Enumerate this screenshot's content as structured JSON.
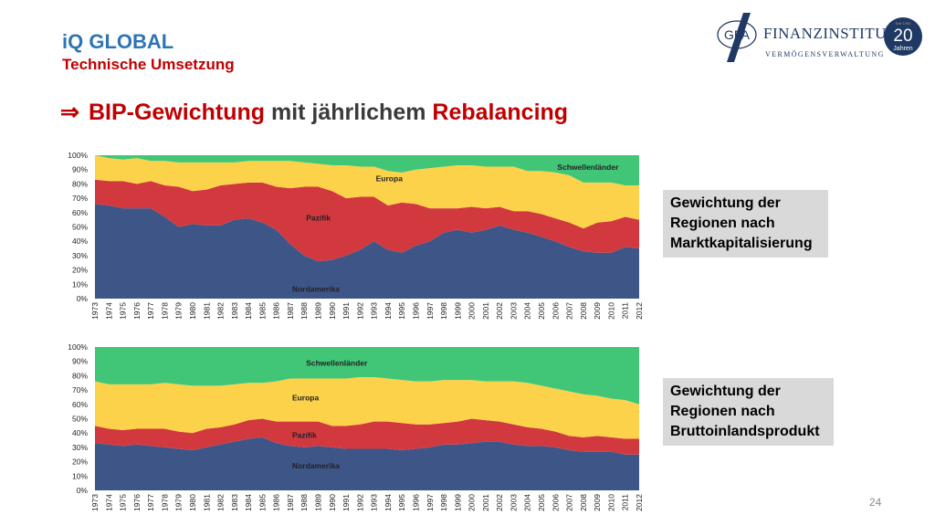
{
  "header": {
    "title": "iQ GLOBAL",
    "subtitle": "Technische Umsetzung",
    "headline_arrow": "⇒",
    "headline_part1": "BIP-Gewichtung",
    "headline_part2": " mit jährlichem ",
    "headline_part3": "Rebalancing"
  },
  "logo": {
    "mark": "GFA",
    "name": "FINANZINSTITUT",
    "tagline": "VERMÖGENSVERWALTUNG",
    "badge_number": "20",
    "badge_text": "Jahren",
    "badge_small": "Seit 1992",
    "colors": {
      "navy": "#1f3864",
      "gold": "#b8a06a"
    }
  },
  "boxes": {
    "top": [
      "Gewichtung der",
      "Regionen nach",
      "Marktkapitalisierung"
    ],
    "bottom": [
      "Gewichtung der",
      "Regionen nach",
      "Bruttoinlandsprodukt"
    ]
  },
  "page_number": "24",
  "chart_data": [
    {
      "type": "area",
      "stacked": true,
      "categories": [
        "1973",
        "1974",
        "1975",
        "1976",
        "1977",
        "1978",
        "1979",
        "1980",
        "1981",
        "1982",
        "1983",
        "1984",
        "1985",
        "1986",
        "1987",
        "1988",
        "1989",
        "1990",
        "1991",
        "1992",
        "1993",
        "1994",
        "1995",
        "1996",
        "1997",
        "1998",
        "1999",
        "2000",
        "2001",
        "2002",
        "2003",
        "2004",
        "2005",
        "2006",
        "2007",
        "2008",
        "2009",
        "2010",
        "2011",
        "2012"
      ],
      "ylim": [
        0,
        100
      ],
      "yticks": [
        "0%",
        "10%",
        "20%",
        "30%",
        "40%",
        "50%",
        "60%",
        "70%",
        "80%",
        "90%",
        "100%"
      ],
      "grid": false,
      "series": [
        {
          "name": "Nordamerika",
          "color": "#3e5588",
          "values": [
            66,
            65,
            63,
            63,
            63,
            57,
            50,
            52,
            51,
            51,
            55,
            56,
            53,
            48,
            38,
            30,
            26,
            27,
            30,
            34,
            40,
            34,
            32,
            37,
            40,
            46,
            48,
            46,
            48,
            51,
            48,
            46,
            43,
            40,
            36,
            33,
            32,
            32,
            36,
            35
          ]
        },
        {
          "name": "Pazifik",
          "color": "#d1393f",
          "values": [
            17,
            17,
            19,
            17,
            19,
            22,
            28,
            23,
            25,
            28,
            25,
            25,
            28,
            30,
            39,
            48,
            52,
            48,
            40,
            37,
            31,
            31,
            35,
            29,
            23,
            17,
            15,
            18,
            15,
            13,
            13,
            15,
            16,
            16,
            17,
            16,
            21,
            22,
            21,
            20
          ]
        },
        {
          "name": "Europa",
          "color": "#fdd24b",
          "values": [
            17,
            16,
            15,
            18,
            14,
            17,
            17,
            20,
            19,
            16,
            15,
            15,
            15,
            18,
            19,
            17,
            16,
            18,
            23,
            21,
            21,
            24,
            21,
            24,
            28,
            29,
            30,
            29,
            29,
            28,
            31,
            28,
            30,
            32,
            33,
            32,
            28,
            27,
            22,
            24
          ]
        },
        {
          "name": "Schwellenländer",
          "color": "#41c678",
          "values": [
            0,
            2,
            3,
            2,
            4,
            4,
            5,
            5,
            5,
            5,
            5,
            4,
            4,
            4,
            4,
            5,
            6,
            7,
            7,
            8,
            8,
            11,
            12,
            10,
            9,
            8,
            7,
            7,
            8,
            8,
            8,
            11,
            11,
            12,
            14,
            19,
            19,
            19,
            21,
            21
          ]
        }
      ]
    },
    {
      "type": "area",
      "stacked": true,
      "categories": [
        "1973",
        "1974",
        "1975",
        "1976",
        "1977",
        "1978",
        "1979",
        "1980",
        "1981",
        "1982",
        "1983",
        "1984",
        "1985",
        "1986",
        "1987",
        "1988",
        "1989",
        "1990",
        "1991",
        "1992",
        "1993",
        "1994",
        "1995",
        "1996",
        "1997",
        "1998",
        "1999",
        "2000",
        "2001",
        "2002",
        "2003",
        "2004",
        "2005",
        "2006",
        "2007",
        "2008",
        "2009",
        "2010",
        "2011",
        "2012"
      ],
      "ylim": [
        0,
        100
      ],
      "yticks": [
        "0%",
        "10%",
        "20%",
        "30%",
        "40%",
        "50%",
        "60%",
        "70%",
        "80%",
        "90%",
        "100%"
      ],
      "grid": false,
      "series": [
        {
          "name": "Nordamerika",
          "color": "#3e5588",
          "values": [
            33,
            32,
            31,
            32,
            31,
            30,
            29,
            28,
            30,
            32,
            34,
            36,
            37,
            33,
            31,
            30,
            31,
            30,
            29,
            29,
            29,
            29,
            28,
            29,
            30,
            32,
            32,
            33,
            34,
            34,
            32,
            31,
            31,
            30,
            28,
            27,
            27,
            27,
            25,
            25
          ]
        },
        {
          "name": "Pazifik",
          "color": "#d1393f",
          "values": [
            12,
            11,
            11,
            11,
            12,
            13,
            12,
            12,
            13,
            12,
            12,
            13,
            13,
            15,
            17,
            18,
            17,
            15,
            16,
            17,
            19,
            19,
            19,
            17,
            16,
            15,
            16,
            17,
            15,
            14,
            14,
            13,
            12,
            11,
            10,
            10,
            11,
            10,
            11,
            11
          ]
        },
        {
          "name": "Europa",
          "color": "#fdd24b",
          "values": [
            31,
            31,
            32,
            31,
            31,
            32,
            33,
            33,
            30,
            29,
            28,
            26,
            25,
            28,
            30,
            30,
            30,
            33,
            33,
            33,
            31,
            30,
            30,
            30,
            30,
            30,
            29,
            27,
            27,
            28,
            30,
            31,
            30,
            30,
            31,
            30,
            28,
            27,
            27,
            24
          ]
        },
        {
          "name": "Schwellenländer",
          "color": "#41c678",
          "values": [
            24,
            26,
            26,
            26,
            26,
            25,
            26,
            27,
            27,
            27,
            26,
            25,
            25,
            24,
            22,
            22,
            22,
            22,
            22,
            21,
            21,
            22,
            23,
            24,
            24,
            23,
            23,
            23,
            24,
            24,
            24,
            25,
            27,
            29,
            31,
            33,
            34,
            36,
            37,
            40
          ]
        }
      ]
    }
  ]
}
